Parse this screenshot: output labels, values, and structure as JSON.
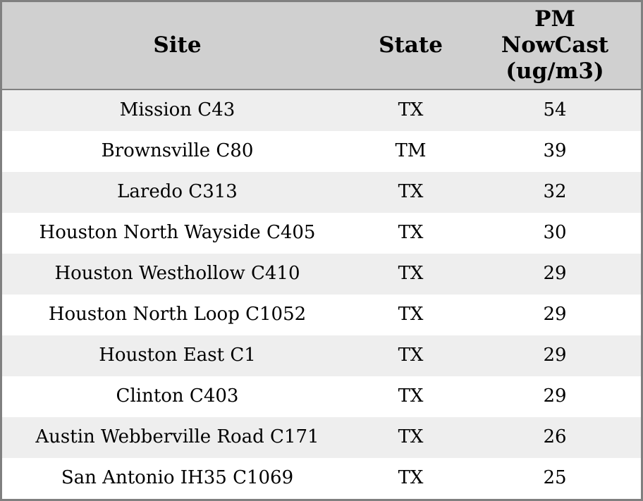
{
  "chart_data": {
    "type": "table",
    "title": "",
    "columns": [
      "Site",
      "State",
      "PM NowCast (ug/m3)"
    ],
    "rows": [
      [
        "Mission C43",
        "TX",
        54
      ],
      [
        "Brownsville C80",
        "TM",
        39
      ],
      [
        "Laredo C313",
        "TX",
        32
      ],
      [
        "Houston North Wayside C405",
        "TX",
        30
      ],
      [
        "Houston Westhollow C410",
        "TX",
        29
      ],
      [
        "Houston North Loop C1052",
        "TX",
        29
      ],
      [
        "Houston East C1",
        "TX",
        29
      ],
      [
        "Clinton C403",
        "TX",
        29
      ],
      [
        "Austin Webberville Road C171",
        "TX",
        26
      ],
      [
        "San Antonio IH35 C1069",
        "TX",
        25
      ]
    ]
  },
  "header": {
    "site": "Site",
    "state": "State",
    "pm": "PM\nNowCast\n(ug/m3)"
  },
  "colors": {
    "header_bg": "#d0d0d0",
    "border": "#808080",
    "row_alt_bg": "#eeeeee",
    "row_bg": "#ffffff",
    "text": "#000000"
  }
}
